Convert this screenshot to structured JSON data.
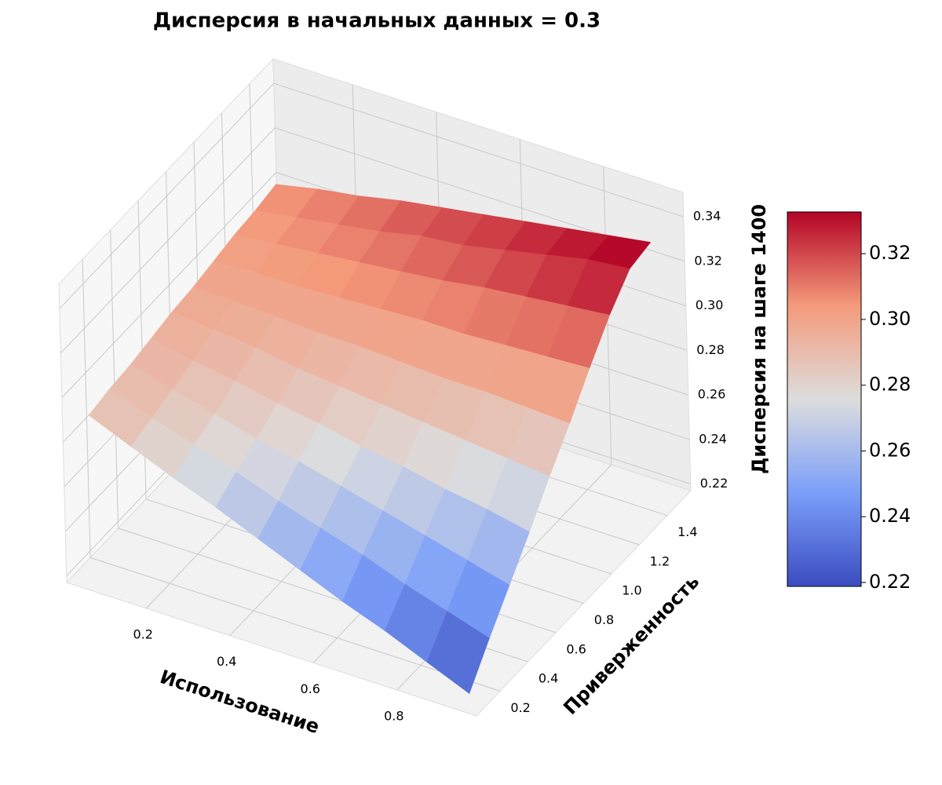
{
  "chart_data": {
    "type": "surface",
    "title": "Дисперсия в начальных данных = 0.3",
    "x_label": "Использование",
    "y_label": "Приверженность",
    "z_label": "Дисперсия на шаге 1400",
    "x": [
      0.05,
      0.15,
      0.25,
      0.35,
      0.45,
      0.55,
      0.65,
      0.75,
      0.85,
      0.95
    ],
    "y": [
      0.1,
      0.25,
      0.4,
      0.55,
      0.7,
      0.85,
      1.0,
      1.15,
      1.3,
      1.45
    ],
    "z": [
      [
        0.29,
        0.282,
        0.274,
        0.267,
        0.259,
        0.251,
        0.243,
        0.236,
        0.228,
        0.22
      ],
      [
        0.292,
        0.285,
        0.279,
        0.273,
        0.266,
        0.26,
        0.254,
        0.247,
        0.241,
        0.235
      ],
      [
        0.293,
        0.288,
        0.283,
        0.278,
        0.274,
        0.269,
        0.264,
        0.259,
        0.254,
        0.249
      ],
      [
        0.295,
        0.291,
        0.288,
        0.284,
        0.281,
        0.277,
        0.274,
        0.27,
        0.267,
        0.263
      ],
      [
        0.297,
        0.295,
        0.293,
        0.29,
        0.288,
        0.286,
        0.284,
        0.282,
        0.28,
        0.278
      ],
      [
        0.298,
        0.298,
        0.297,
        0.296,
        0.296,
        0.295,
        0.294,
        0.294,
        0.293,
        0.292
      ],
      [
        0.3,
        0.301,
        0.301,
        0.302,
        0.303,
        0.304,
        0.304,
        0.305,
        0.306,
        0.307
      ],
      [
        0.302,
        0.304,
        0.306,
        0.308,
        0.31,
        0.312,
        0.315,
        0.317,
        0.319,
        0.321
      ],
      [
        0.303,
        0.306,
        0.309,
        0.312,
        0.316,
        0.318,
        0.322,
        0.326,
        0.33,
        0.332
      ],
      [
        0.305,
        0.309,
        0.312,
        0.316,
        0.319,
        0.322,
        0.325,
        0.328,
        0.331,
        0.334
      ]
    ],
    "xlim": [
      0.01,
      0.99
    ],
    "ylim": [
      0.03,
      1.57
    ],
    "zlim": [
      0.217,
      0.351
    ],
    "xticks": [
      0.2,
      0.4,
      0.6,
      0.8
    ],
    "yticks": [
      0.2,
      0.4,
      0.6,
      0.8,
      {
        "value": 1,
        "label": "1.0"
      },
      1.2,
      1.4
    ],
    "zticks": [
      0.22,
      0.24,
      0.26,
      0.28,
      {
        "value": 0.3,
        "label": "0.30"
      },
      0.32,
      0.34
    ],
    "colormap": "coolwarm",
    "clim": [
      0.2188,
      0.3327
    ],
    "colorbar_ticks": [
      0.22,
      0.24,
      0.26,
      0.28,
      {
        "value": 0.3,
        "label": "0.30"
      },
      0.32
    ],
    "grid": true
  }
}
